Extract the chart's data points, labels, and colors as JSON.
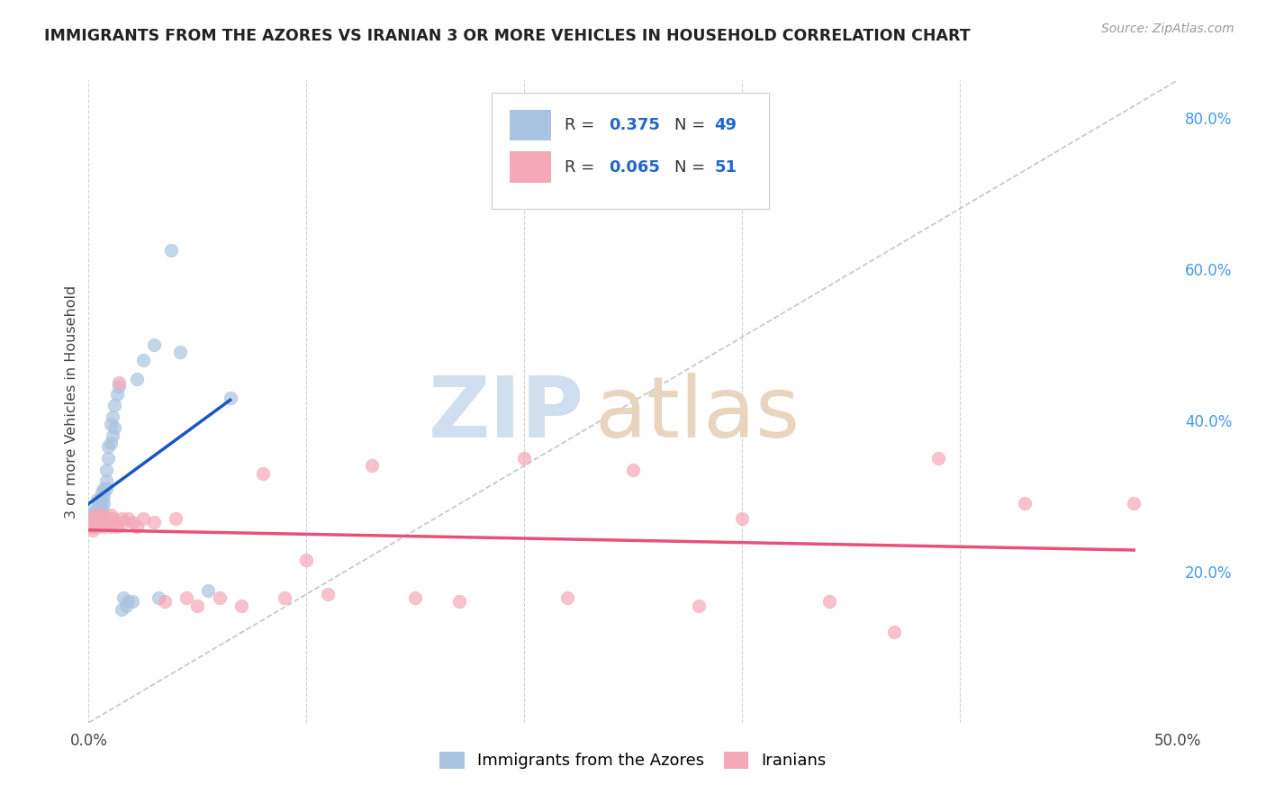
{
  "title": "IMMIGRANTS FROM THE AZORES VS IRANIAN 3 OR MORE VEHICLES IN HOUSEHOLD CORRELATION CHART",
  "source": "Source: ZipAtlas.com",
  "ylabel": "3 or more Vehicles in Household",
  "xlim": [
    0.0,
    0.5
  ],
  "ylim": [
    0.0,
    0.85
  ],
  "xticks": [
    0.0,
    0.1,
    0.2,
    0.3,
    0.4,
    0.5
  ],
  "yticks_right": [
    0.2,
    0.4,
    0.6,
    0.8
  ],
  "yticklabels_right": [
    "20.0%",
    "40.0%",
    "60.0%",
    "80.0%"
  ],
  "legend_label1": "Immigrants from the Azores",
  "legend_label2": "Iranians",
  "azores_color": "#a8c4e0",
  "iranian_color": "#f4a8b8",
  "azores_line_color": "#1a56c4",
  "iranian_line_color": "#e8507a",
  "diagonal_color": "#b0b8c8",
  "background_color": "#ffffff",
  "azores_x": [
    0.001,
    0.002,
    0.002,
    0.003,
    0.003,
    0.003,
    0.004,
    0.004,
    0.004,
    0.004,
    0.005,
    0.005,
    0.005,
    0.005,
    0.005,
    0.006,
    0.006,
    0.006,
    0.006,
    0.007,
    0.007,
    0.007,
    0.007,
    0.008,
    0.008,
    0.008,
    0.009,
    0.009,
    0.01,
    0.01,
    0.011,
    0.011,
    0.012,
    0.012,
    0.013,
    0.014,
    0.015,
    0.016,
    0.017,
    0.018,
    0.02,
    0.022,
    0.025,
    0.03,
    0.032,
    0.038,
    0.042,
    0.055,
    0.065
  ],
  "azores_y": [
    0.28,
    0.26,
    0.275,
    0.27,
    0.265,
    0.28,
    0.285,
    0.295,
    0.275,
    0.265,
    0.28,
    0.29,
    0.295,
    0.285,
    0.27,
    0.285,
    0.295,
    0.305,
    0.28,
    0.3,
    0.31,
    0.29,
    0.275,
    0.32,
    0.335,
    0.31,
    0.35,
    0.365,
    0.37,
    0.395,
    0.38,
    0.405,
    0.39,
    0.42,
    0.435,
    0.445,
    0.15,
    0.165,
    0.155,
    0.16,
    0.16,
    0.455,
    0.48,
    0.5,
    0.165,
    0.625,
    0.49,
    0.175,
    0.43
  ],
  "iranian_x": [
    0.001,
    0.002,
    0.002,
    0.003,
    0.003,
    0.004,
    0.004,
    0.005,
    0.005,
    0.006,
    0.006,
    0.007,
    0.007,
    0.008,
    0.009,
    0.01,
    0.01,
    0.011,
    0.012,
    0.013,
    0.014,
    0.015,
    0.016,
    0.018,
    0.02,
    0.022,
    0.025,
    0.03,
    0.035,
    0.04,
    0.045,
    0.05,
    0.06,
    0.07,
    0.08,
    0.09,
    0.1,
    0.11,
    0.13,
    0.15,
    0.17,
    0.2,
    0.22,
    0.25,
    0.28,
    0.3,
    0.34,
    0.37,
    0.39,
    0.43,
    0.48
  ],
  "iranian_y": [
    0.26,
    0.27,
    0.255,
    0.265,
    0.275,
    0.26,
    0.27,
    0.265,
    0.275,
    0.265,
    0.275,
    0.26,
    0.27,
    0.265,
    0.27,
    0.275,
    0.26,
    0.27,
    0.265,
    0.26,
    0.45,
    0.27,
    0.265,
    0.27,
    0.265,
    0.26,
    0.27,
    0.265,
    0.16,
    0.27,
    0.165,
    0.155,
    0.165,
    0.155,
    0.33,
    0.165,
    0.215,
    0.17,
    0.34,
    0.165,
    0.16,
    0.35,
    0.165,
    0.335,
    0.155,
    0.27,
    0.16,
    0.12,
    0.35,
    0.29,
    0.29
  ],
  "watermark_zip_color": "#d0dff0",
  "watermark_atlas_color": "#e8d5c0"
}
